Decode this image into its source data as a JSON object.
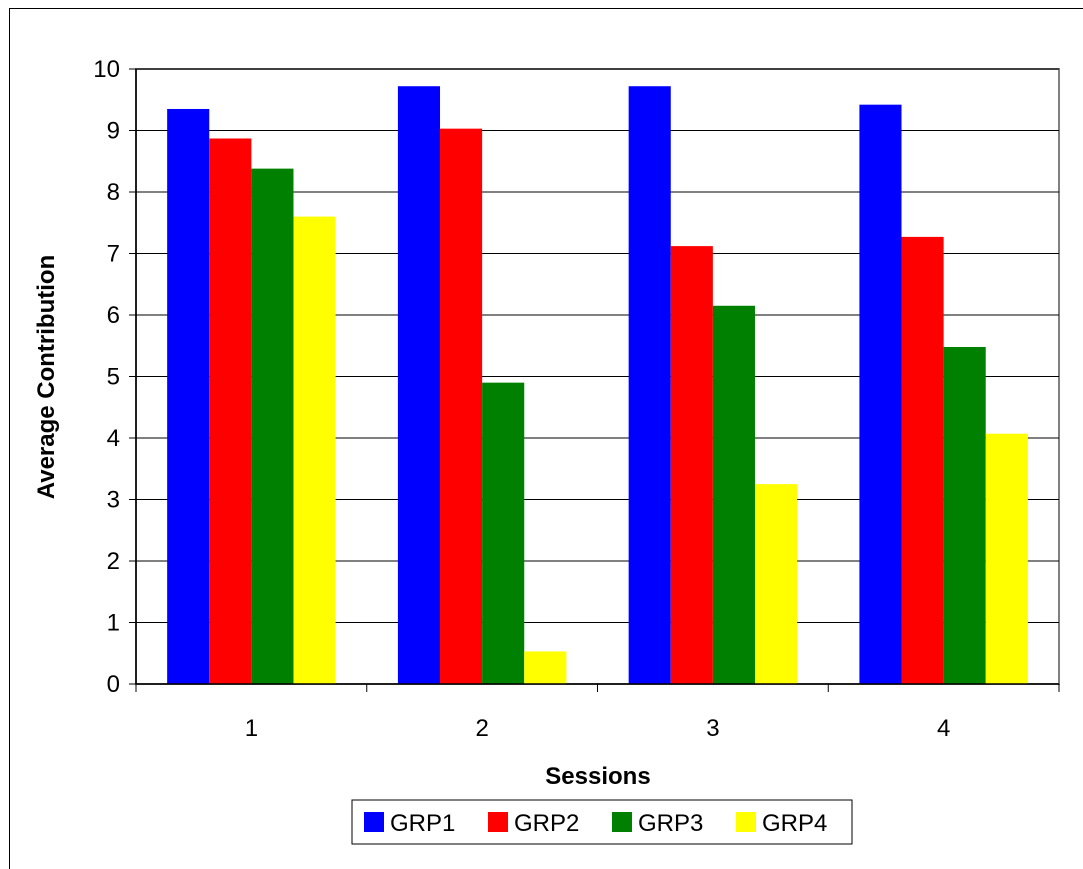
{
  "chart_data": {
    "type": "bar",
    "title": "",
    "xlabel": "Sessions",
    "ylabel": "Average Contribution",
    "categories": [
      "1",
      "2",
      "3",
      "4"
    ],
    "ylim": [
      0,
      10
    ],
    "yticks": [
      "0",
      "1",
      "2",
      "3",
      "4",
      "5",
      "6",
      "7",
      "8",
      "9",
      "10"
    ],
    "grid": true,
    "legend_position": "bottom",
    "series": [
      {
        "name": "GRP1",
        "color": "#0000ff",
        "values": [
          9.35,
          9.72,
          9.72,
          9.42
        ]
      },
      {
        "name": "GRP2",
        "color": "#ff0000",
        "values": [
          8.87,
          9.03,
          7.12,
          7.27
        ]
      },
      {
        "name": "GRP3",
        "color": "#008000",
        "values": [
          8.38,
          4.9,
          6.15,
          5.48
        ]
      },
      {
        "name": "GRP4",
        "color": "#ffff00",
        "values": [
          7.6,
          0.53,
          3.25,
          4.07
        ]
      }
    ]
  }
}
